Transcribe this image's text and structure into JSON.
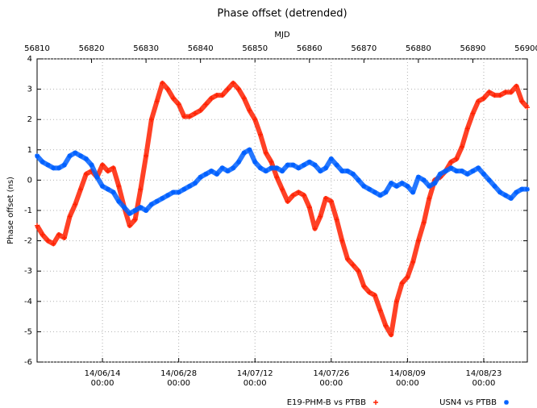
{
  "chart_data": {
    "type": "scatter",
    "title": "Phase offset (detrended)",
    "x2label": "MJD",
    "ylabel": "Phase offset (ns)",
    "xlim": [
      56810,
      56900
    ],
    "ylim": [
      -6,
      4
    ],
    "yticks": [
      -6,
      -5,
      -4,
      -3,
      -2,
      -1,
      0,
      1,
      2,
      3,
      4
    ],
    "x2ticks": [
      56810,
      56820,
      56830,
      56840,
      56850,
      56860,
      56870,
      56880,
      56890,
      56900
    ],
    "xticks": [
      {
        "value": 56822,
        "label": "14/06/14\n00:00"
      },
      {
        "value": 56836,
        "label": "14/06/28\n00:00"
      },
      {
        "value": 56850,
        "label": "14/07/12\n00:00"
      },
      {
        "value": 56864,
        "label": "14/07/26\n00:00"
      },
      {
        "value": 56878,
        "label": "14/08/09\n00:00"
      },
      {
        "value": 56892,
        "label": "14/08/23\n00:00"
      }
    ],
    "grid": true,
    "legend": "bottom",
    "x": [
      56810,
      56811,
      56812,
      56813,
      56814,
      56815,
      56816,
      56817,
      56818,
      56819,
      56820,
      56821,
      56822,
      56823,
      56824,
      56825,
      56826,
      56827,
      56828,
      56829,
      56830,
      56831,
      56832,
      56833,
      56834,
      56835,
      56836,
      56837,
      56838,
      56839,
      56840,
      56841,
      56842,
      56843,
      56844,
      56845,
      56846,
      56847,
      56848,
      56849,
      56850,
      56851,
      56852,
      56853,
      56854,
      56855,
      56856,
      56857,
      56858,
      56859,
      56860,
      56861,
      56862,
      56863,
      56864,
      56865,
      56866,
      56867,
      56868,
      56869,
      56870,
      56871,
      56872,
      56873,
      56874,
      56875,
      56876,
      56877,
      56878,
      56879,
      56880,
      56881,
      56882,
      56883,
      56884,
      56885,
      56886,
      56887,
      56888,
      56889,
      56890,
      56891,
      56892,
      56893,
      56894,
      56895,
      56896,
      56897,
      56898,
      56899,
      56900
    ],
    "series": [
      {
        "name": "E19-PHM-B vs PTBB",
        "color": "#ff2000",
        "marker": "+",
        "values": [
          -1.5,
          -1.8,
          -2.0,
          -2.1,
          -1.8,
          -1.9,
          -1.2,
          -0.8,
          -0.3,
          0.2,
          0.3,
          0.1,
          0.5,
          0.3,
          0.4,
          -0.2,
          -0.9,
          -1.5,
          -1.3,
          -0.3,
          0.8,
          2.0,
          2.6,
          3.2,
          3.0,
          2.7,
          2.5,
          2.1,
          2.1,
          2.2,
          2.3,
          2.5,
          2.7,
          2.8,
          2.8,
          3.0,
          3.2,
          3.0,
          2.7,
          2.3,
          2.0,
          1.5,
          0.9,
          0.6,
          0.1,
          -0.3,
          -0.7,
          -0.5,
          -0.4,
          -0.5,
          -0.9,
          -1.6,
          -1.2,
          -0.6,
          -0.7,
          -1.3,
          -2.0,
          -2.6,
          -2.8,
          -3.0,
          -3.5,
          -3.7,
          -3.8,
          -4.3,
          -4.8,
          -5.1,
          -4.0,
          -3.4,
          -3.2,
          -2.7,
          -2.0,
          -1.4,
          -0.6,
          0.0,
          0.1,
          0.3,
          0.6,
          0.7,
          1.1,
          1.7,
          2.2,
          2.6,
          2.7,
          2.9,
          2.8,
          2.8,
          2.9,
          2.9,
          3.1,
          2.6,
          2.4
        ]
      },
      {
        "name": "USN4 vs PTBB",
        "color": "#0060ff",
        "marker": "*",
        "values": [
          0.8,
          0.6,
          0.5,
          0.4,
          0.4,
          0.5,
          0.8,
          0.9,
          0.8,
          0.7,
          0.5,
          0.1,
          -0.2,
          -0.3,
          -0.4,
          -0.7,
          -0.9,
          -1.1,
          -1.0,
          -0.9,
          -1.0,
          -0.8,
          -0.7,
          -0.6,
          -0.5,
          -0.4,
          -0.4,
          -0.3,
          -0.2,
          -0.1,
          0.1,
          0.2,
          0.3,
          0.2,
          0.4,
          0.3,
          0.4,
          0.6,
          0.9,
          1.0,
          0.6,
          0.4,
          0.3,
          0.4,
          0.4,
          0.3,
          0.5,
          0.5,
          0.4,
          0.5,
          0.6,
          0.5,
          0.3,
          0.4,
          0.7,
          0.5,
          0.3,
          0.3,
          0.2,
          0.0,
          -0.2,
          -0.3,
          -0.4,
          -0.5,
          -0.4,
          -0.1,
          -0.2,
          -0.1,
          -0.2,
          -0.4,
          0.1,
          0.0,
          -0.2,
          -0.1,
          0.2,
          0.3,
          0.4,
          0.3,
          0.3,
          0.2,
          0.3,
          0.4,
          0.2,
          0.0,
          -0.2,
          -0.4,
          -0.5,
          -0.6,
          -0.4,
          -0.3,
          -0.3
        ]
      }
    ]
  }
}
